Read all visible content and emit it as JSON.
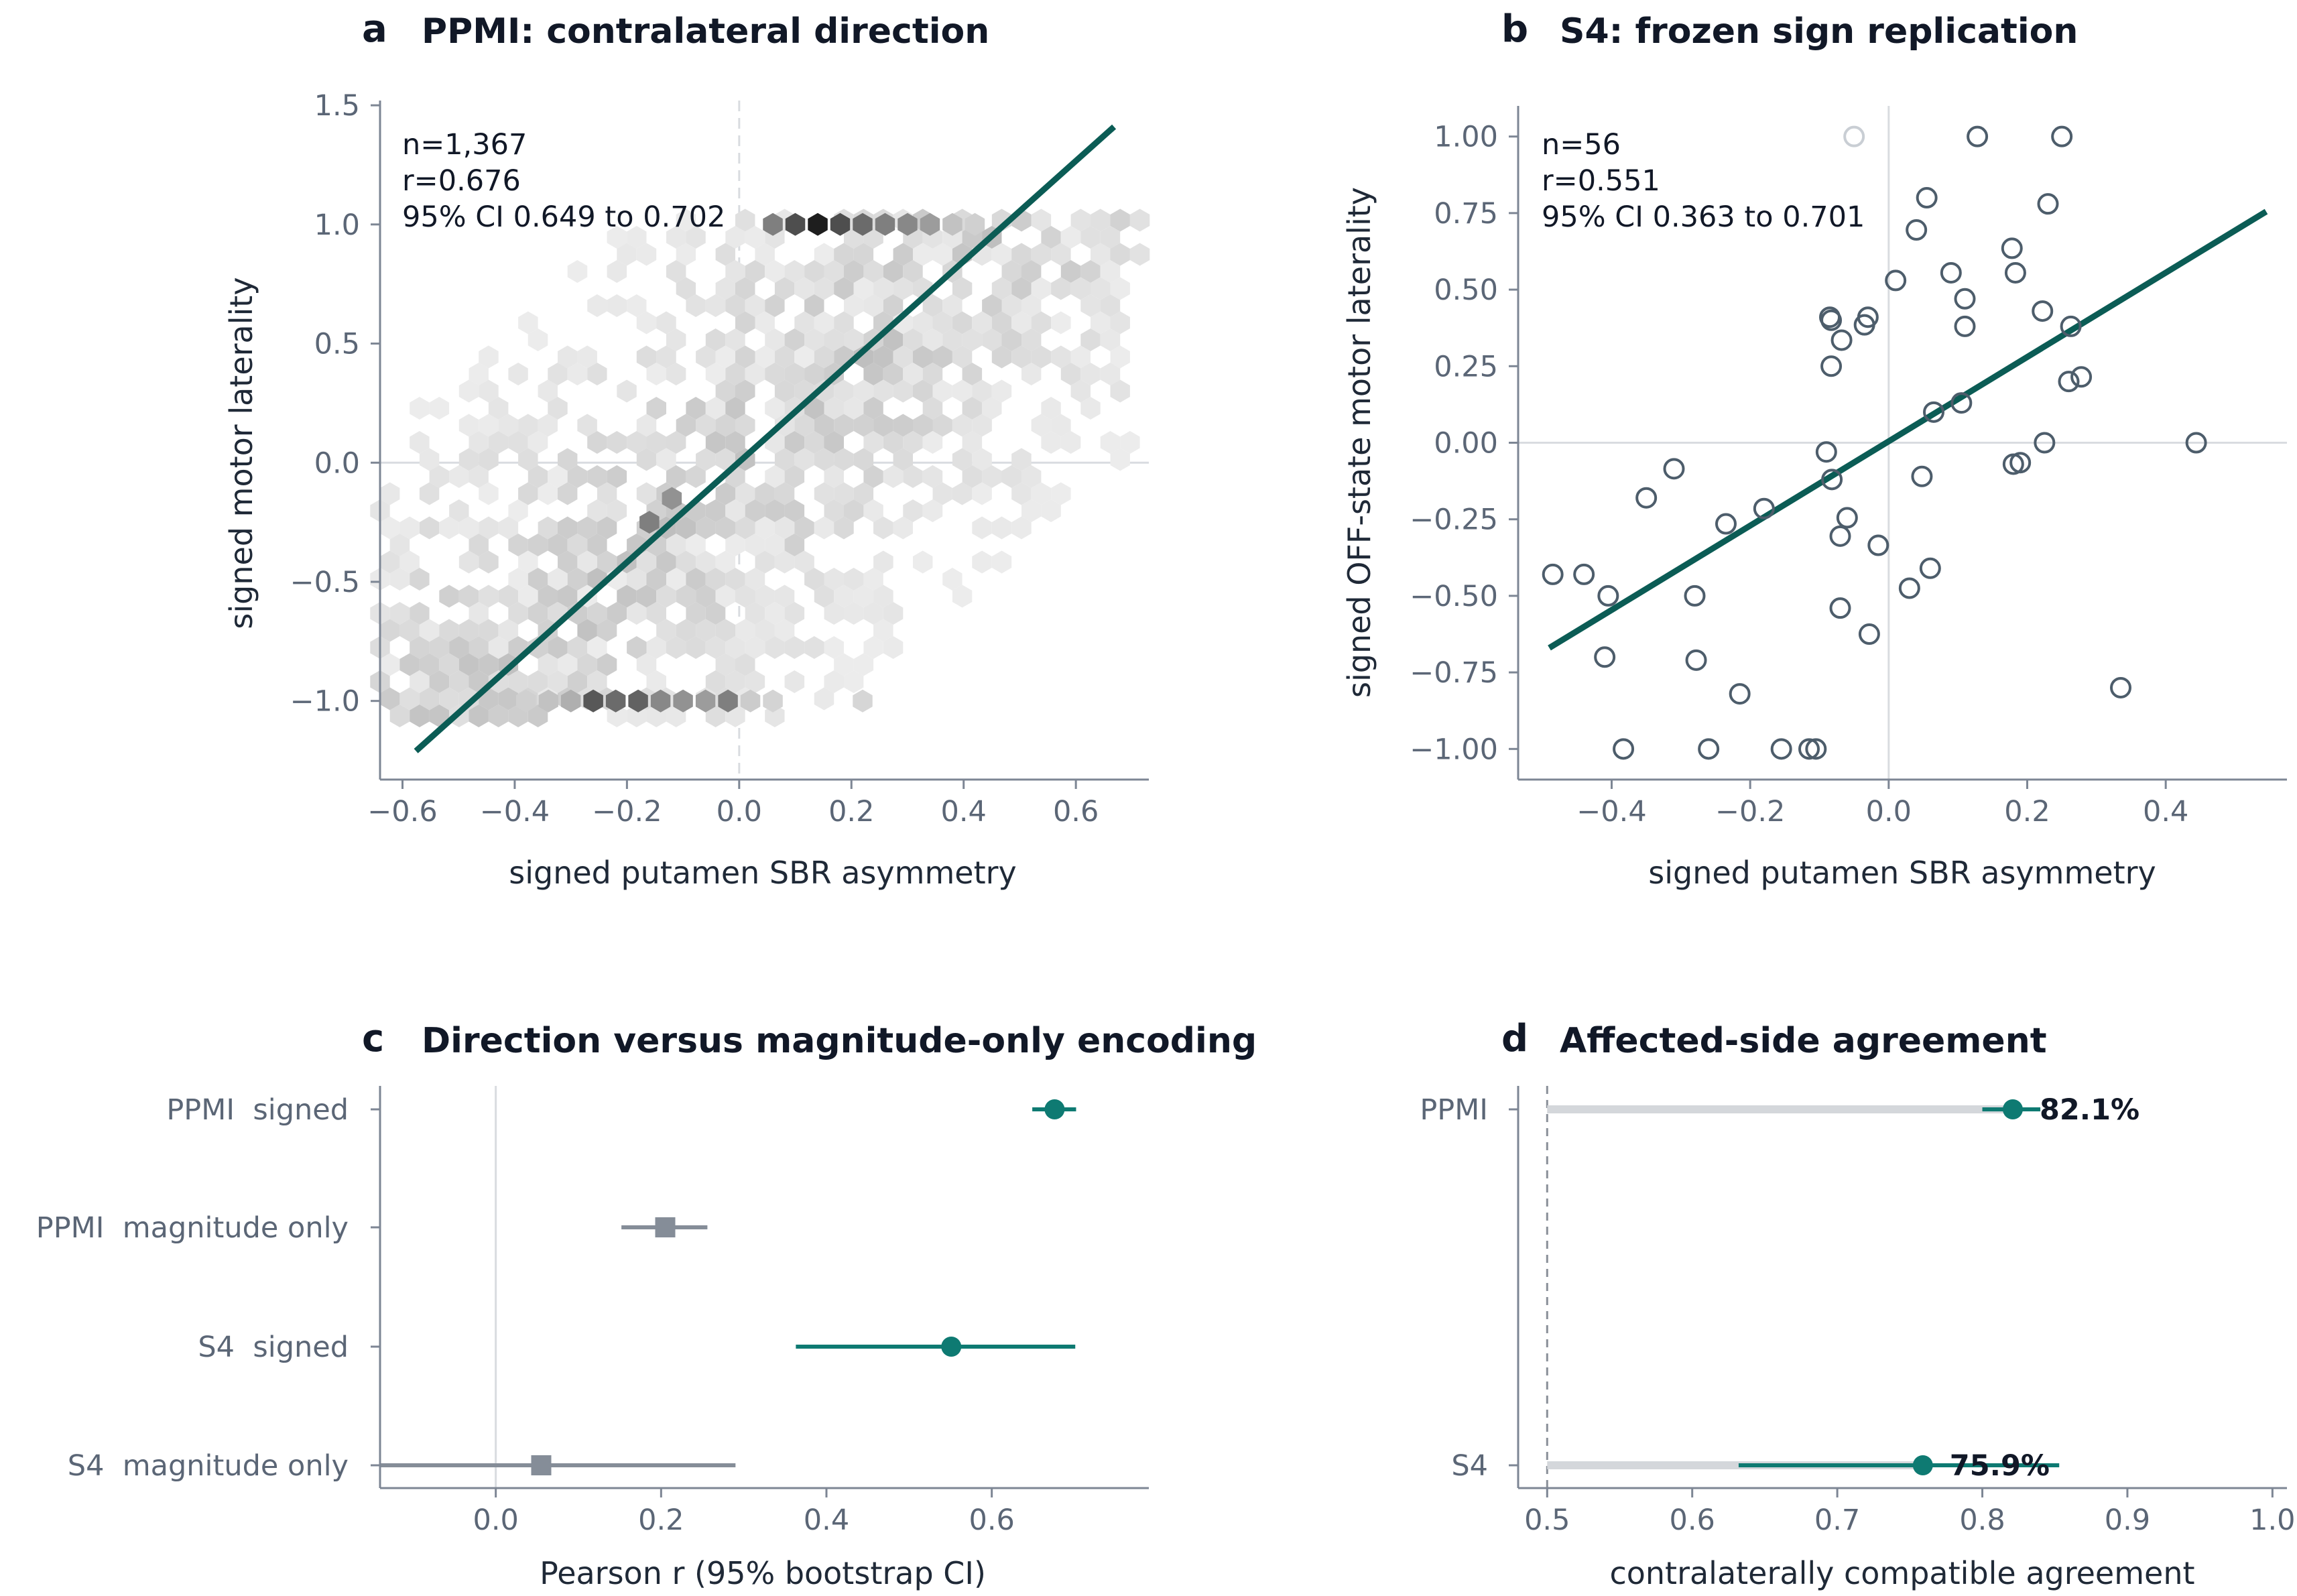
{
  "colors": {
    "accent": "#0e7a72",
    "fit_line": "#0b5c55",
    "neutral": "#858d98",
    "axis": "#7d8694",
    "grid": "#d9dce0",
    "marker_edge": "#4d5d6b"
  },
  "panels": {
    "a": {
      "letter": "a",
      "title": "PPMI: contralateral direction"
    },
    "b": {
      "letter": "b",
      "title": "S4: frozen sign replication"
    },
    "c": {
      "letter": "c",
      "title": "Direction versus magnitude-only encoding"
    },
    "d": {
      "letter": "d",
      "title": "Affected-side agreement"
    }
  },
  "chart_data": [
    {
      "id": "a",
      "type": "heatmap",
      "subtype": "hexbin",
      "title": "PPMI: contralateral direction",
      "xlabel": "signed putamen SBR asymmetry",
      "ylabel": "signed motor laterality",
      "xlim": [
        -0.64,
        0.73
      ],
      "ylim": [
        -1.33,
        1.52
      ],
      "xticks": [
        -0.6,
        -0.4,
        -0.2,
        0.0,
        0.2,
        0.4,
        0.6
      ],
      "xtick_labels": [
        "−0.6",
        "−0.4",
        "−0.2",
        "0.0",
        "0.2",
        "0.4",
        "0.6"
      ],
      "yticks": [
        -1.0,
        -0.5,
        0.0,
        0.5,
        1.0,
        1.5
      ],
      "ytick_labels": [
        "−1.0",
        "−0.5",
        "0.0",
        "0.5",
        "1.0",
        "1.5"
      ],
      "annotations": [
        "n=1,367",
        "r=0.676",
        "95% CI 0.649 to 0.702"
      ],
      "fit_line": [
        [
          -0.576,
          -1.21
        ],
        [
          0.668,
          1.41
        ]
      ],
      "density_peaks": [
        {
          "x": 0.14,
          "y": 1.0,
          "intensity": 1.0
        },
        {
          "x": 0.1,
          "y": 1.0,
          "intensity": 0.75
        },
        {
          "x": 0.18,
          "y": 1.0,
          "intensity": 0.75
        },
        {
          "x": 0.06,
          "y": 1.0,
          "intensity": 0.5
        },
        {
          "x": 0.22,
          "y": 1.0,
          "intensity": 0.6
        },
        {
          "x": 0.26,
          "y": 1.0,
          "intensity": 0.5
        },
        {
          "x": 0.3,
          "y": 1.0,
          "intensity": 0.45
        },
        {
          "x": 0.34,
          "y": 1.0,
          "intensity": 0.35
        },
        {
          "x": 0.38,
          "y": 1.0,
          "intensity": 0.15
        },
        {
          "x": 0.42,
          "y": 1.0,
          "intensity": 0.08
        },
        {
          "x": -0.26,
          "y": -1.0,
          "intensity": 0.7
        },
        {
          "x": -0.22,
          "y": -1.0,
          "intensity": 0.6
        },
        {
          "x": -0.18,
          "y": -1.0,
          "intensity": 0.65
        },
        {
          "x": -0.14,
          "y": -1.0,
          "intensity": 0.45
        },
        {
          "x": -0.1,
          "y": -1.0,
          "intensity": 0.4
        },
        {
          "x": -0.06,
          "y": -1.0,
          "intensity": 0.35
        },
        {
          "x": -0.02,
          "y": -1.0,
          "intensity": 0.5
        },
        {
          "x": -0.3,
          "y": -1.0,
          "intensity": 0.25
        },
        {
          "x": -0.34,
          "y": -1.0,
          "intensity": 0.15
        },
        {
          "x": -0.38,
          "y": -1.0,
          "intensity": 0.08
        },
        {
          "x": 0.02,
          "y": -1.0,
          "intensity": 0.1
        },
        {
          "x": 0.06,
          "y": -1.0,
          "intensity": 0.06
        },
        {
          "x": 0.22,
          "y": -1.0,
          "intensity": 0.05
        },
        {
          "x": -0.16,
          "y": -0.25,
          "intensity": 0.5
        },
        {
          "x": -0.12,
          "y": -0.15,
          "intensity": 0.4
        }
      ]
    },
    {
      "id": "b",
      "type": "scatter",
      "title": "S4: frozen sign replication",
      "xlabel": "signed putamen SBR asymmetry",
      "ylabel": "signed OFF-state motor laterality",
      "xlim": [
        -0.535,
        0.575
      ],
      "ylim": [
        -1.1,
        1.1
      ],
      "xticks": [
        -0.4,
        -0.2,
        0.0,
        0.2,
        0.4
      ],
      "xtick_labels": [
        "−0.4",
        "−0.2",
        "0.0",
        "0.2",
        "0.4"
      ],
      "yticks": [
        -1.0,
        -0.75,
        -0.5,
        -0.25,
        0.0,
        0.25,
        0.5,
        0.75,
        1.0
      ],
      "ytick_labels": [
        "−1.00",
        "−0.75",
        "−0.50",
        "−0.25",
        "0.00",
        "0.25",
        "0.50",
        "0.75",
        "1.00"
      ],
      "annotations": [
        "n=56",
        "r=0.551",
        "95% CI 0.363 to 0.701"
      ],
      "fit_line": [
        [
          -0.49,
          -0.67
        ],
        [
          0.545,
          0.755
        ]
      ],
      "points": [
        {
          "x": -0.05,
          "y": 1.0,
          "faded": true
        },
        {
          "x": 0.128,
          "y": 1.0
        },
        {
          "x": 0.25,
          "y": 1.0
        },
        {
          "x": 0.055,
          "y": 0.8
        },
        {
          "x": 0.23,
          "y": 0.78
        },
        {
          "x": 0.04,
          "y": 0.695
        },
        {
          "x": 0.178,
          "y": 0.635
        },
        {
          "x": 0.09,
          "y": 0.555
        },
        {
          "x": 0.183,
          "y": 0.555
        },
        {
          "x": 0.01,
          "y": 0.53
        },
        {
          "x": 0.11,
          "y": 0.47
        },
        {
          "x": 0.222,
          "y": 0.43
        },
        {
          "x": -0.085,
          "y": 0.41
        },
        {
          "x": -0.03,
          "y": 0.41
        },
        {
          "x": -0.083,
          "y": 0.4
        },
        {
          "x": -0.035,
          "y": 0.385
        },
        {
          "x": 0.11,
          "y": 0.38
        },
        {
          "x": 0.263,
          "y": 0.38
        },
        {
          "x": -0.068,
          "y": 0.335
        },
        {
          "x": -0.083,
          "y": 0.25
        },
        {
          "x": 0.278,
          "y": 0.215
        },
        {
          "x": 0.26,
          "y": 0.2
        },
        {
          "x": 0.105,
          "y": 0.13
        },
        {
          "x": 0.065,
          "y": 0.1
        },
        {
          "x": 0.225,
          "y": 0.0
        },
        {
          "x": 0.444,
          "y": 0.0
        },
        {
          "x": -0.09,
          "y": -0.03
        },
        {
          "x": -0.31,
          "y": -0.085
        },
        {
          "x": 0.18,
          "y": -0.07
        },
        {
          "x": 0.19,
          "y": -0.065
        },
        {
          "x": -0.082,
          "y": -0.12
        },
        {
          "x": 0.048,
          "y": -0.11
        },
        {
          "x": -0.35,
          "y": -0.18
        },
        {
          "x": -0.18,
          "y": -0.215
        },
        {
          "x": -0.235,
          "y": -0.265
        },
        {
          "x": -0.06,
          "y": -0.245
        },
        {
          "x": -0.07,
          "y": -0.305
        },
        {
          "x": -0.015,
          "y": -0.335
        },
        {
          "x": 0.06,
          "y": -0.41
        },
        {
          "x": -0.485,
          "y": -0.43
        },
        {
          "x": -0.44,
          "y": -0.43
        },
        {
          "x": 0.03,
          "y": -0.475
        },
        {
          "x": -0.405,
          "y": -0.5
        },
        {
          "x": -0.28,
          "y": -0.5
        },
        {
          "x": -0.07,
          "y": -0.54
        },
        {
          "x": -0.028,
          "y": -0.625
        },
        {
          "x": -0.41,
          "y": -0.7
        },
        {
          "x": -0.278,
          "y": -0.71
        },
        {
          "x": 0.335,
          "y": -0.8
        },
        {
          "x": -0.215,
          "y": -0.82
        },
        {
          "x": -0.383,
          "y": -1.0
        },
        {
          "x": -0.26,
          "y": -1.0
        },
        {
          "x": -0.155,
          "y": -1.0
        },
        {
          "x": -0.115,
          "y": -1.0
        },
        {
          "x": -0.105,
          "y": -1.0
        }
      ]
    },
    {
      "id": "c",
      "type": "scatter",
      "subtype": "forest",
      "title": "Direction versus magnitude-only encoding",
      "xlabel": "Pearson r (95% bootstrap CI)",
      "xlim": [
        -0.14,
        0.79
      ],
      "xticks": [
        0.0,
        0.2,
        0.4,
        0.6
      ],
      "xtick_labels": [
        "0.0",
        "0.2",
        "0.4",
        "0.6"
      ],
      "rows": [
        {
          "label": "PPMI  signed",
          "estimate": 0.676,
          "ci": [
            0.649,
            0.702
          ],
          "kind": "signed"
        },
        {
          "label": "PPMI  magnitude only",
          "estimate": 0.205,
          "ci": [
            0.152,
            0.256
          ],
          "kind": "magnitude"
        },
        {
          "label": "S4  signed",
          "estimate": 0.551,
          "ci": [
            0.363,
            0.701
          ],
          "kind": "signed"
        },
        {
          "label": "S4  magnitude only",
          "estimate": 0.055,
          "ci": [
            -0.14,
            0.29
          ],
          "kind": "magnitude"
        }
      ]
    },
    {
      "id": "d",
      "type": "scatter",
      "subtype": "dot-with-ci",
      "title": "Affected-side agreement",
      "xlabel": "contralaterally compatible agreement",
      "xlim": [
        0.48,
        1.01
      ],
      "xticks": [
        0.5,
        0.6,
        0.7,
        0.8,
        0.9,
        1.0
      ],
      "xtick_labels": [
        "0.5",
        "0.6",
        "0.7",
        "0.8",
        "0.9",
        "1.0"
      ],
      "reference_x": 0.5,
      "rows": [
        {
          "label": "PPMI",
          "estimate": 0.821,
          "ci": [
            0.8,
            0.84
          ],
          "value_label": "82.1%"
        },
        {
          "label": "S4",
          "estimate": 0.759,
          "ci": [
            0.632,
            0.853
          ],
          "value_label": "75.9%"
        }
      ]
    }
  ]
}
